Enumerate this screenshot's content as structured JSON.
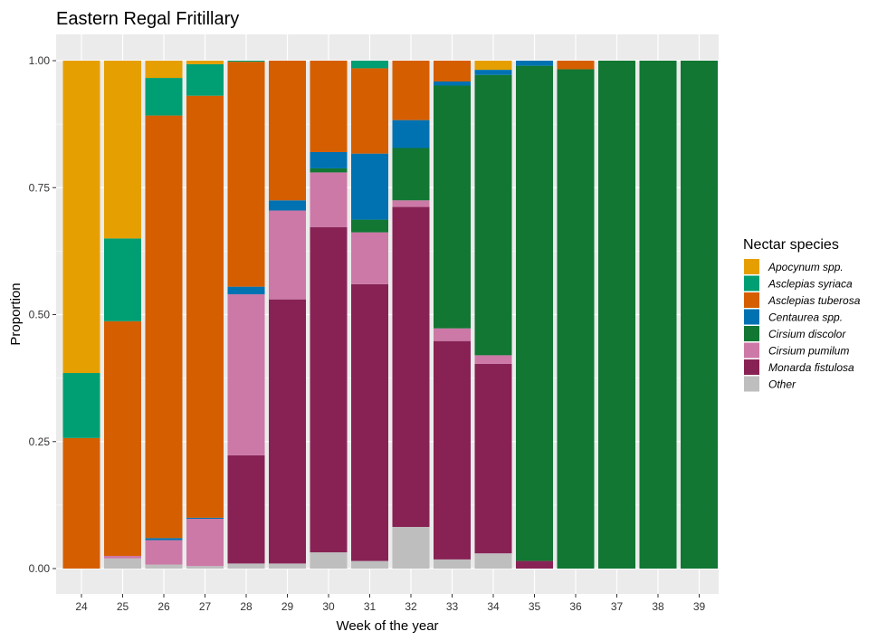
{
  "chart_data": {
    "type": "bar",
    "stacked": true,
    "title": "Eastern Regal Fritillary",
    "xlabel": "Week of the year",
    "ylabel": "Proportion",
    "ylim": [
      0,
      1
    ],
    "yticks": [
      "0.00",
      "0.25",
      "0.50",
      "0.75",
      "1.00"
    ],
    "categories": [
      "24",
      "25",
      "26",
      "27",
      "28",
      "29",
      "30",
      "31",
      "32",
      "33",
      "34",
      "35",
      "36",
      "37",
      "38",
      "39"
    ],
    "legend": {
      "title": "Nectar species",
      "placement": "right"
    },
    "series": [
      {
        "name": "Other",
        "color": "#BEBEBE",
        "values": [
          0,
          0.02,
          0.008,
          0.005,
          0.01,
          0.01,
          0.032,
          0.015,
          0.082,
          0.018,
          0.03,
          0,
          0,
          0,
          0,
          0
        ]
      },
      {
        "name": "Monarda fistulosa",
        "color": "#882255",
        "values": [
          0,
          0,
          0,
          0,
          0.213,
          0.52,
          0.64,
          0.545,
          0.63,
          0.43,
          0.373,
          0.015,
          0,
          0,
          0,
          0
        ]
      },
      {
        "name": "Cirsium pumilum",
        "color": "#CC79A7",
        "values": [
          0,
          0.005,
          0.048,
          0.093,
          0.317,
          0.175,
          0.108,
          0.102,
          0.013,
          0.025,
          0.017,
          0,
          0,
          0,
          0,
          0
        ]
      },
      {
        "name": "Cirsium discolor",
        "color": "#117733",
        "values": [
          0,
          0,
          0,
          0,
          0,
          0,
          0.008,
          0.025,
          0.103,
          0.478,
          0.552,
          0.975,
          0.983,
          1,
          1,
          1
        ]
      },
      {
        "name": "Centaurea spp.",
        "color": "#0072B2",
        "values": [
          0,
          0,
          0.004,
          0.002,
          0.015,
          0.02,
          0.032,
          0.13,
          0.055,
          0.008,
          0.01,
          0.01,
          0,
          0,
          0,
          0
        ]
      },
      {
        "name": "Asclepias tuberosa",
        "color": "#D55E00",
        "values": [
          0.257,
          0.462,
          0.832,
          0.831,
          0.443,
          0.275,
          0.18,
          0.168,
          0.117,
          0.041,
          0,
          0,
          0.017,
          0,
          0,
          0
        ]
      },
      {
        "name": "Asclepias syriaca",
        "color": "#009E73",
        "values": [
          0.128,
          0.163,
          0.074,
          0.062,
          0.002,
          0,
          0,
          0.015,
          0,
          0,
          0,
          0,
          0,
          0,
          0,
          0
        ]
      },
      {
        "name": "Apocynum spp.",
        "color": "#E69F00",
        "values": [
          0.615,
          0.35,
          0.034,
          0.007,
          0,
          0,
          0,
          0,
          0,
          0,
          0.018,
          0,
          0,
          0,
          0,
          0
        ]
      }
    ],
    "legend_order": [
      "Apocynum spp.",
      "Asclepias syriaca",
      "Asclepias tuberosa",
      "Centaurea spp.",
      "Cirsium discolor",
      "Cirsium pumilum",
      "Monarda fistulosa",
      "Other"
    ],
    "grid": true,
    "panel_background": "#EBEBEB",
    "grid_color": "#FFFFFF"
  }
}
